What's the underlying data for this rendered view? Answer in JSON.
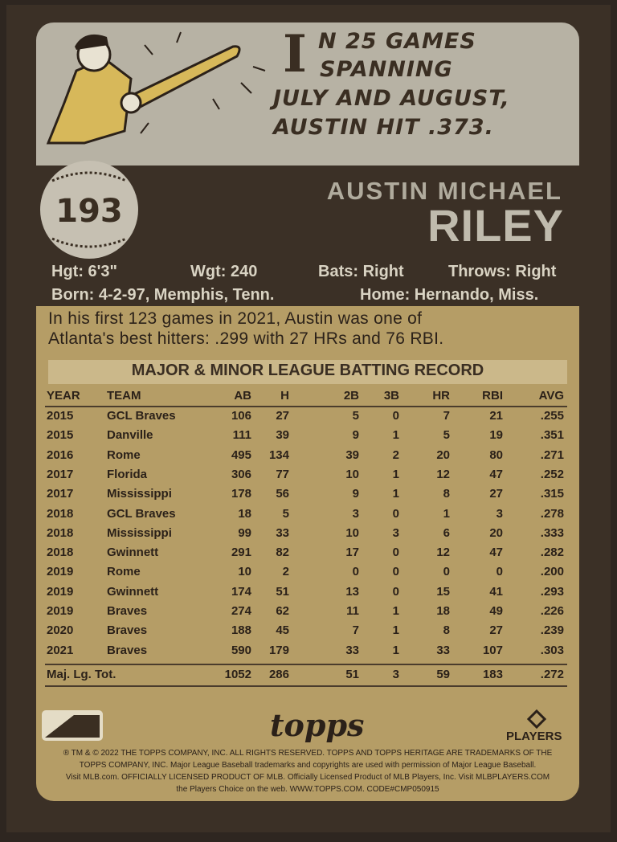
{
  "cartoon": {
    "drop_cap": "I",
    "lines": [
      "N 25 GAMES",
      "SPANNING",
      "JULY AND AUGUST,",
      "AUSTIN HIT .373."
    ]
  },
  "card_number": "193",
  "name": {
    "first": "AUSTIN MICHAEL",
    "last": "RILEY"
  },
  "bio": {
    "height": "Hgt: 6'3\"",
    "weight": "Wgt: 240",
    "bats": "Bats: Right",
    "throws": "Throws: Right",
    "born": "Born: 4-2-97, Memphis, Tenn.",
    "home": "Home: Hernando, Miss."
  },
  "blurb": [
    "In his first 123 games in 2021, Austin was one of",
    "Atlanta's best hitters: .299 with 27 HRs and 76 RBI."
  ],
  "table": {
    "title": "MAJOR & MINOR LEAGUE BATTING RECORD",
    "header": [
      "YEAR",
      "TEAM",
      "AB",
      "H",
      "2B",
      "3B",
      "HR",
      "RBI",
      "AVG"
    ],
    "rows": [
      [
        "2015",
        "GCL Braves",
        "106",
        "27",
        "5",
        "0",
        "7",
        "21",
        ".255"
      ],
      [
        "2015",
        "Danville",
        "111",
        "39",
        "9",
        "1",
        "5",
        "19",
        ".351"
      ],
      [
        "2016",
        "Rome",
        "495",
        "134",
        "39",
        "2",
        "20",
        "80",
        ".271"
      ],
      [
        "2017",
        "Florida",
        "306",
        "77",
        "10",
        "1",
        "12",
        "47",
        ".252"
      ],
      [
        "2017",
        "Mississippi",
        "178",
        "56",
        "9",
        "1",
        "8",
        "27",
        ".315"
      ],
      [
        "2018",
        "GCL Braves",
        "18",
        "5",
        "3",
        "0",
        "1",
        "3",
        ".278"
      ],
      [
        "2018",
        "Mississippi",
        "99",
        "33",
        "10",
        "3",
        "6",
        "20",
        ".333"
      ],
      [
        "2018",
        "Gwinnett",
        "291",
        "82",
        "17",
        "0",
        "12",
        "47",
        ".282"
      ],
      [
        "2019",
        "Rome",
        "10",
        "2",
        "0",
        "0",
        "0",
        "0",
        ".200"
      ],
      [
        "2019",
        "Gwinnett",
        "174",
        "51",
        "13",
        "0",
        "15",
        "41",
        ".293"
      ],
      [
        "2019",
        "Braves",
        "274",
        "62",
        "11",
        "1",
        "18",
        "49",
        ".226"
      ],
      [
        "2020",
        "Braves",
        "188",
        "45",
        "7",
        "1",
        "8",
        "27",
        ".239"
      ],
      [
        "2021",
        "Braves",
        "590",
        "179",
        "33",
        "1",
        "33",
        "107",
        ".303"
      ]
    ],
    "total": [
      "Maj. Lg. Tot.",
      "1052",
      "286",
      "51",
      "3",
      "59",
      "183",
      ".272"
    ]
  },
  "footer": {
    "brand": "topps",
    "players": "PLAYERS",
    "legal": [
      "® TM & © 2022 THE TOPPS COMPANY, INC. ALL RIGHTS RESERVED. TOPPS AND TOPPS HERITAGE ARE TRADEMARKS OF THE",
      "TOPPS COMPANY, INC. Major League Baseball trademarks and copyrights are used with permission of Major League Baseball.",
      "Visit MLB.com. OFFICIALLY LICENSED PRODUCT OF MLB. Officially Licensed Product of MLB Players, Inc. Visit MLBPLAYERS.COM",
      "the Players Choice on the web. WWW.TOPPS.COM. CODE#CMP050915"
    ]
  }
}
